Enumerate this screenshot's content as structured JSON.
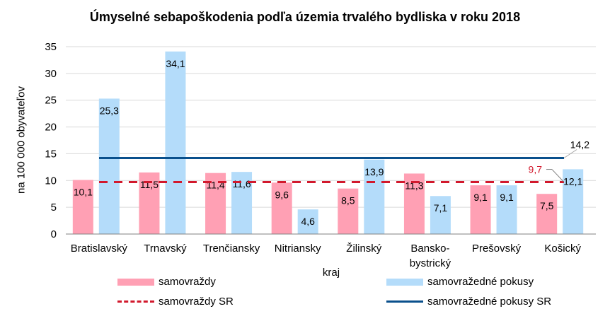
{
  "chart_data": {
    "type": "bar",
    "title": "Úmyselné sebapoškodenia podľa územia trvalého bydliska v roku 2018",
    "xlabel": "kraj",
    "ylabel": "na 100 000 obyvateľov",
    "ylim": [
      0,
      35
    ],
    "yticks": [
      "0",
      "5",
      "10",
      "15",
      "20",
      "25",
      "30",
      "35"
    ],
    "grid": true,
    "legend_position": "bottom",
    "categories": [
      "Bratislavský",
      "Trnavský",
      "Trenčiansky",
      "Nitriansky",
      "Žilinský",
      "Bansko-bystrický",
      "Prešovský",
      "Košický"
    ],
    "series": [
      {
        "name": "samovraždy",
        "kind": "bar",
        "color": "#ffa0b4",
        "values": [
          10.1,
          11.5,
          11.4,
          9.6,
          8.5,
          11.3,
          9.1,
          7.5
        ],
        "labels": [
          "10,1",
          "11,5",
          "11,4",
          "9,6",
          "8,5",
          "11,3",
          "9,1",
          "7,5"
        ]
      },
      {
        "name": "samovražedné pokusy",
        "kind": "bar",
        "color": "#b4dcfa",
        "values": [
          25.3,
          34.1,
          11.6,
          4.6,
          13.9,
          7.1,
          9.1,
          12.1
        ],
        "labels": [
          "25,3",
          "34,1",
          "11,6",
          "4,6",
          "13,9",
          "7,1",
          "9,1",
          "12,1"
        ]
      },
      {
        "name": "samovraždy SR",
        "kind": "line-dashed",
        "color": "#d2192d",
        "value": 9.7,
        "label": "9,7"
      },
      {
        "name": "samovražedné pokusy SR",
        "kind": "line",
        "color": "#0a508c",
        "value": 14.2,
        "label": "14,2"
      }
    ]
  },
  "labels": {
    "title": "Úmyselné sebapoškodenia podľa územia trvalého bydliska v roku 2018",
    "ylabel": "na 100 000 obyvateľov",
    "xlabel": "kraj",
    "cat_bansko_line1": "Bansko-",
    "cat_bansko_line2": "bystrický"
  }
}
